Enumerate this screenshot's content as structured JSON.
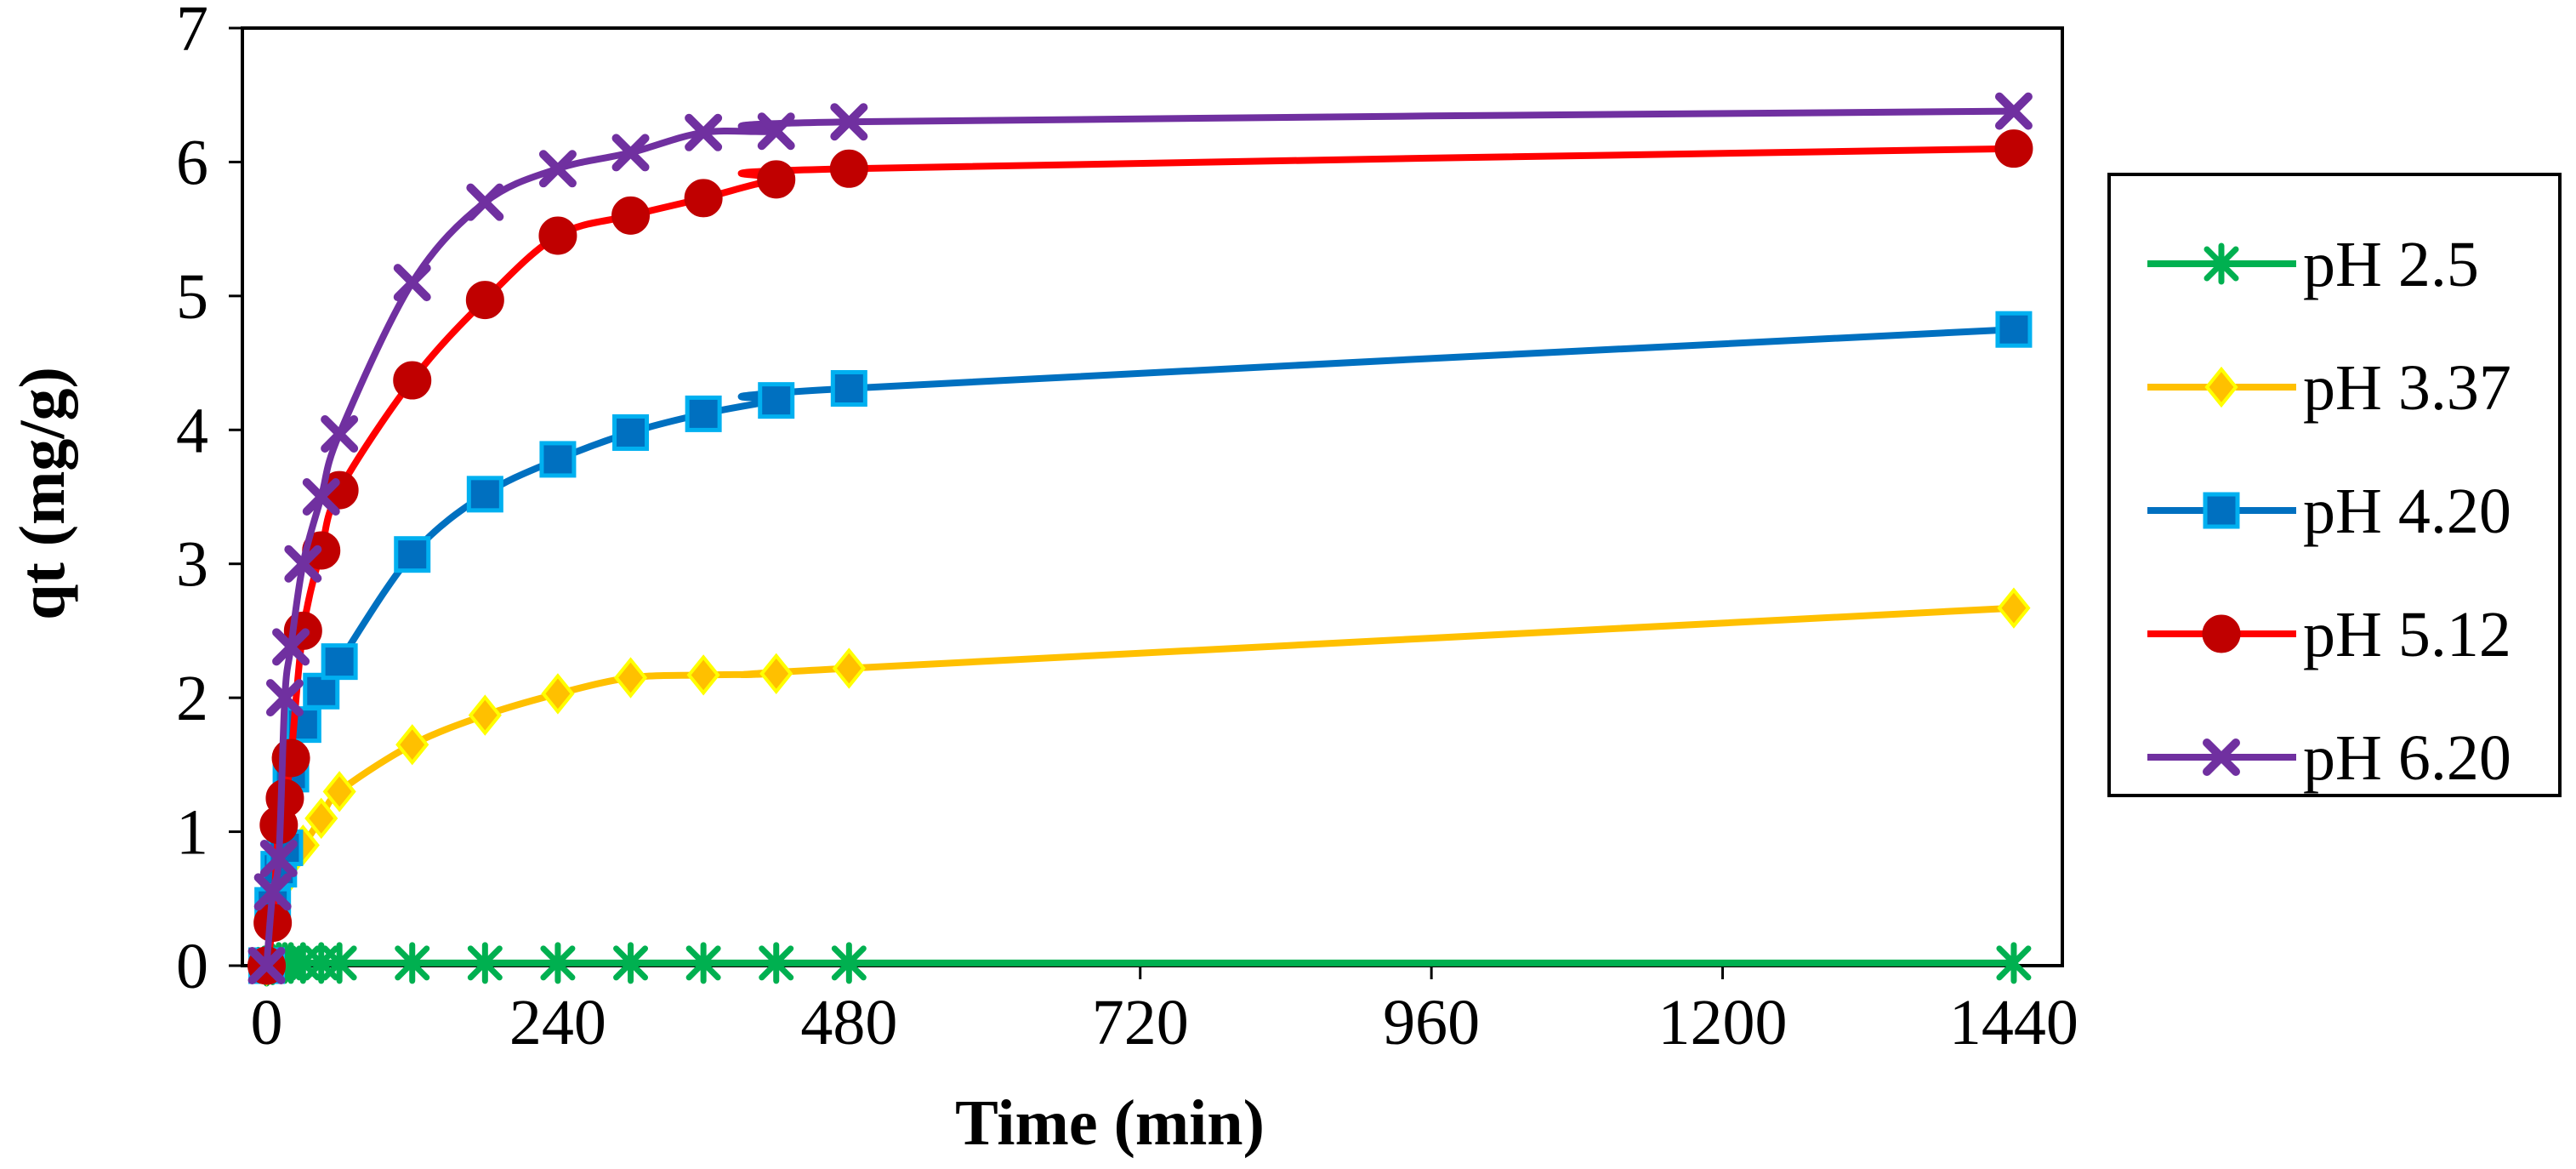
{
  "chart_data": {
    "type": "line",
    "title": "",
    "xlabel": "Time (min)",
    "ylabel": "qt (mg/g)",
    "xlim": [
      -20,
      1480
    ],
    "ylim": [
      0,
      7
    ],
    "xticks": [
      0,
      240,
      480,
      720,
      960,
      1200,
      1440
    ],
    "xtick_labels": [
      "0",
      "240",
      "480",
      "720",
      "960",
      "1200",
      "1440"
    ],
    "yticks": [
      0,
      1,
      2,
      3,
      4,
      5,
      6,
      7
    ],
    "ytick_labels": [
      "0",
      "1",
      "2",
      "3",
      "4",
      "5",
      "6",
      "7"
    ],
    "grid": false,
    "legend_position": "right",
    "x": [
      0,
      5,
      10,
      15,
      20,
      30,
      45,
      60,
      120,
      180,
      240,
      300,
      360,
      420,
      480,
      1440
    ],
    "series": [
      {
        "name": "pH 2.5",
        "color": "#00b050",
        "marker": "star",
        "marker_fill": "#00b050",
        "marker_stroke": "#00b050",
        "values": [
          0,
          0.01,
          0.02,
          0.02,
          0.02,
          0.02,
          0.02,
          0.02,
          0.02,
          0.02,
          0.02,
          0.02,
          0.02,
          0.02,
          0.02,
          0.02
        ]
      },
      {
        "name": "pH 3.37",
        "color": "#ffc000",
        "marker": "diamond",
        "marker_fill": "#ffc000",
        "marker_stroke": "#ffff00",
        "values": [
          0,
          0.35,
          0.6,
          0.75,
          0.82,
          0.9,
          1.1,
          1.3,
          1.65,
          1.87,
          2.03,
          2.15,
          2.17,
          2.18,
          2.22,
          2.67
        ]
      },
      {
        "name": "pH 4.20",
        "color": "#0070c0",
        "marker": "square",
        "marker_fill": "#0070c0",
        "marker_stroke": "#00b0f0",
        "values": [
          0,
          0.45,
          0.72,
          0.88,
          1.43,
          1.8,
          2.05,
          2.27,
          3.07,
          3.52,
          3.78,
          3.98,
          4.12,
          4.22,
          4.31,
          4.75
        ]
      },
      {
        "name": "pH 5.12",
        "color": "#ff0000",
        "marker": "circle",
        "marker_fill": "#c00000",
        "marker_stroke": "#c00000",
        "values": [
          0,
          0.32,
          1.05,
          1.25,
          1.55,
          2.5,
          3.1,
          3.55,
          4.37,
          4.97,
          5.45,
          5.6,
          5.73,
          5.87,
          5.95,
          6.1
        ]
      },
      {
        "name": "pH 6.20",
        "color": "#7030a0",
        "marker": "x",
        "marker_fill": "#7030a0",
        "marker_stroke": "#7030a0",
        "values": [
          0,
          0.55,
          0.8,
          2.0,
          2.38,
          3.0,
          3.5,
          3.97,
          5.1,
          5.7,
          5.95,
          6.07,
          6.22,
          6.23,
          6.3,
          6.38
        ]
      }
    ]
  }
}
